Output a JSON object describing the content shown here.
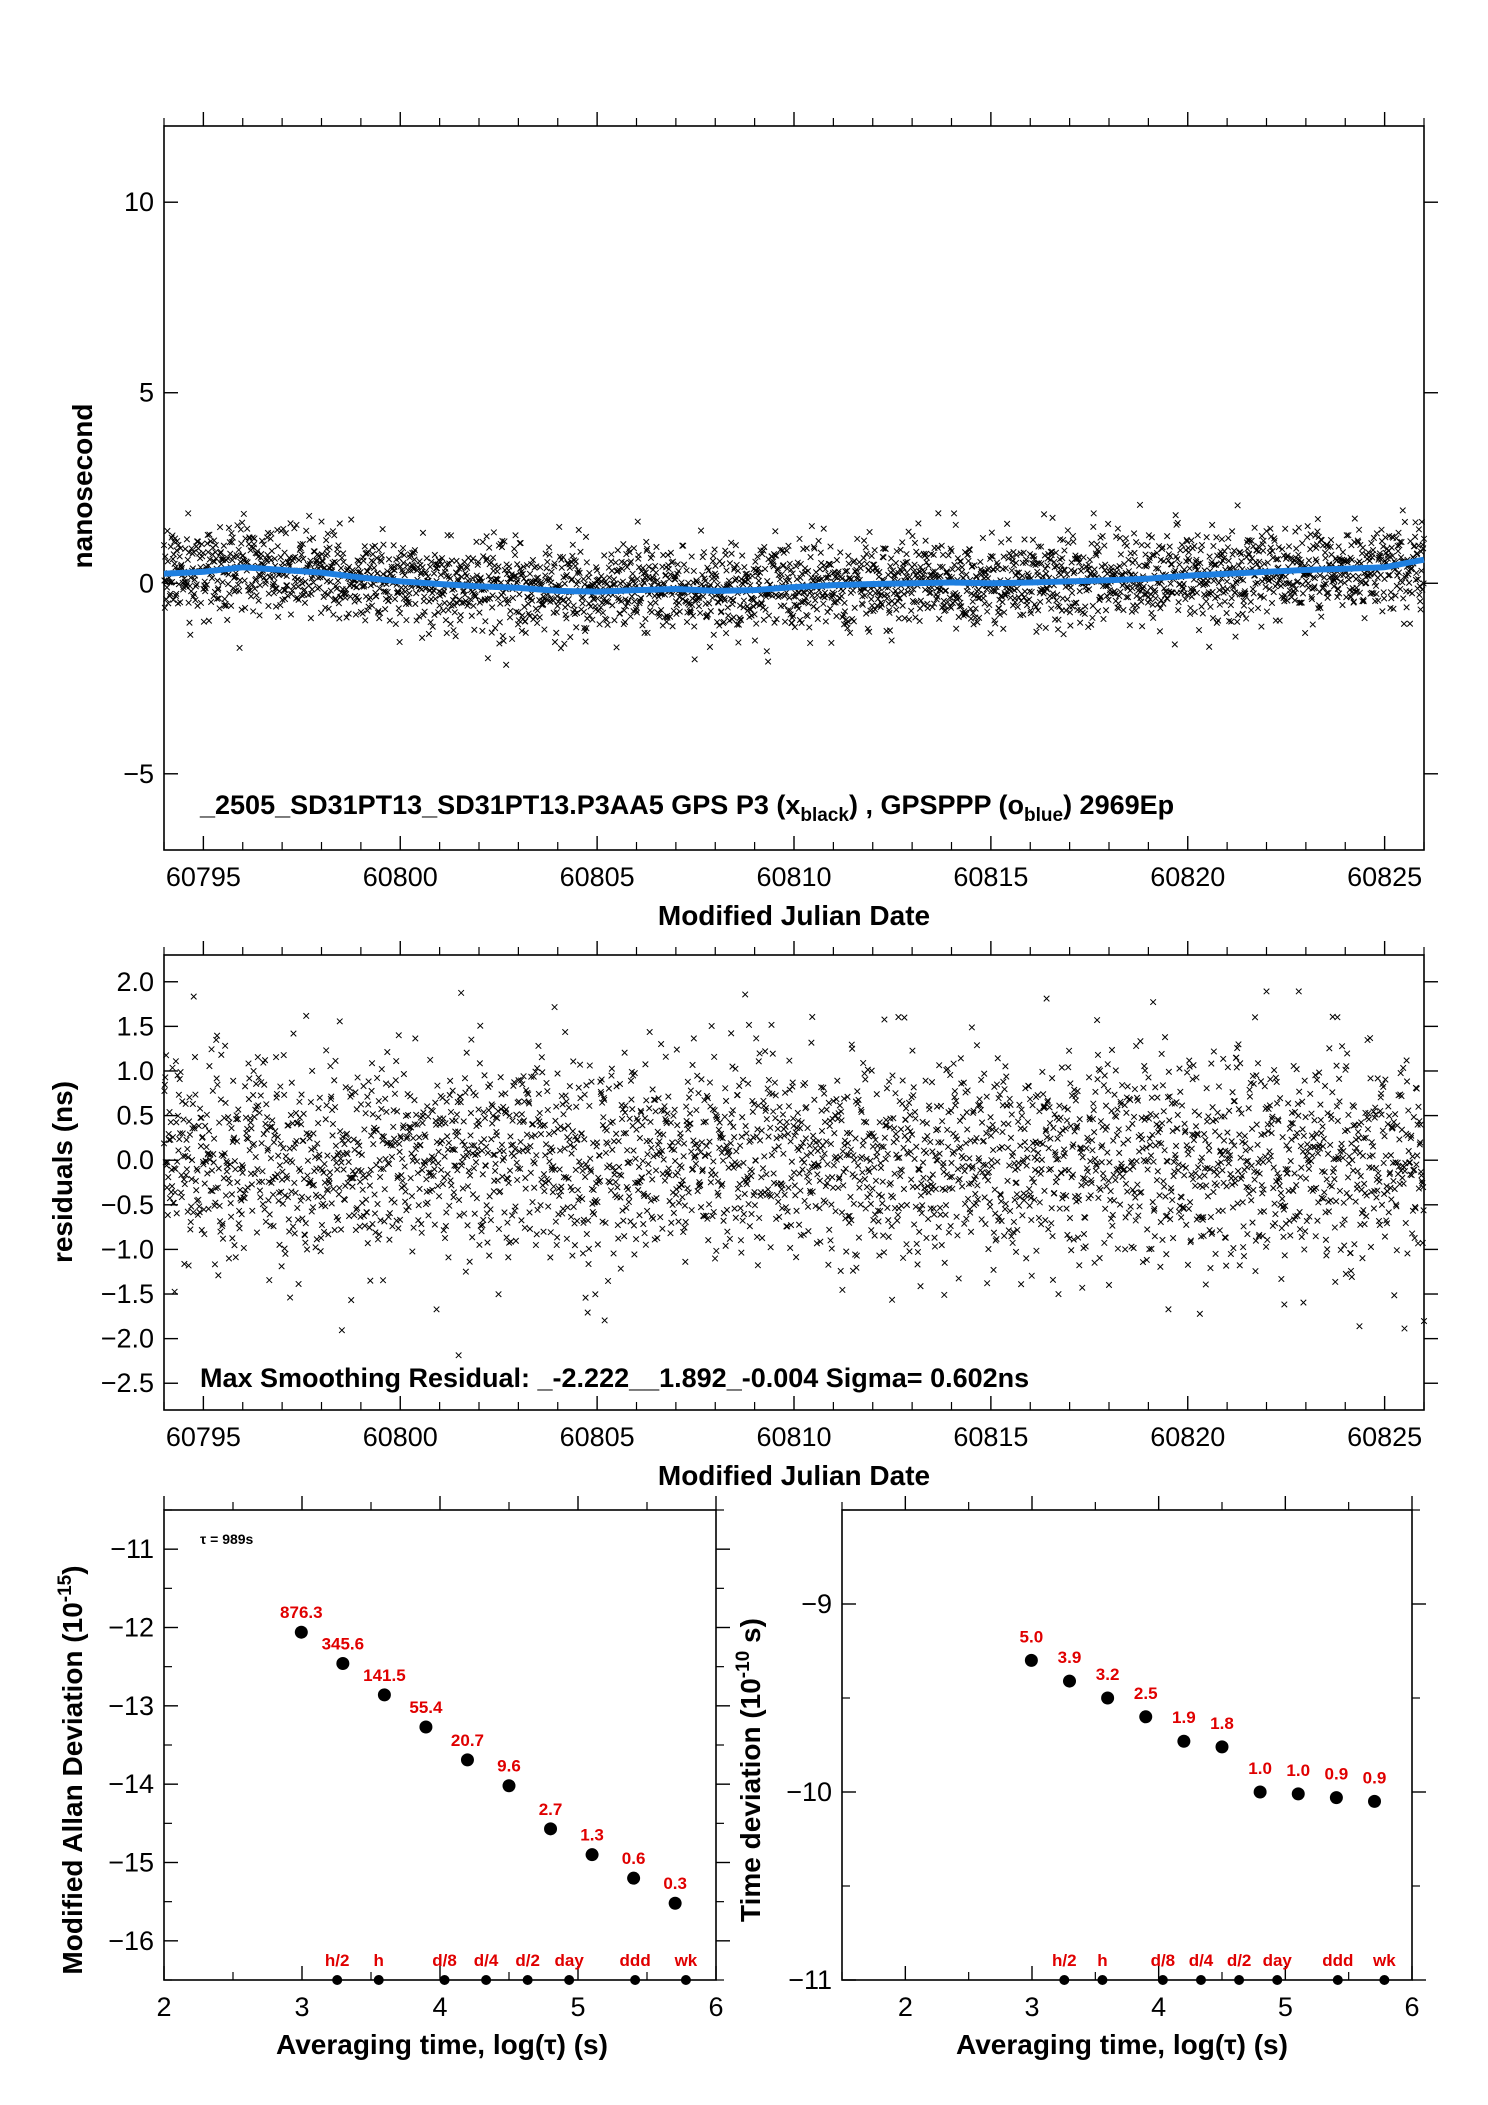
{
  "chart_data": [
    {
      "id": "phase",
      "type": "scatter",
      "title": "_2505_SD31PT13_SD31PT13.P3AA5     GPS P3 (x",
      "title_sub1": "black",
      "title_mid": ") ,  GPSPPP (o",
      "title_sub2": "blue",
      "title_end": ")  2969Ep",
      "xlabel": "Modified Julian Date",
      "ylabel": "nanosecond",
      "xlim": [
        60794.0,
        60826.0
      ],
      "ylim": [
        -7,
        12
      ],
      "xticks": [
        60795,
        60800,
        60805,
        60810,
        60815,
        60820,
        60825
      ],
      "yticks": [
        -5,
        0,
        5,
        10
      ],
      "ytick_labels": [
        "−5",
        "0",
        "5",
        "10"
      ],
      "series": [
        {
          "marker": "x",
          "color": "#000000",
          "scatter_sd": 0.6
        },
        {
          "marker": "o",
          "color": "#1e7fe0",
          "x": [
            60794.0,
            60795.0,
            60796.0,
            60797.0,
            60798.0,
            60799.0,
            60800.0,
            60801.0,
            60802.0,
            60803.0,
            60804.0,
            60805.0,
            60806.0,
            60807.0,
            60808.0,
            60809.0,
            60810.0,
            60811.0,
            60812.0,
            60813.0,
            60814.0,
            60815.0,
            60816.0,
            60817.0,
            60818.0,
            60819.0,
            60820.0,
            60821.0,
            60822.0,
            60823.0,
            60824.0,
            60825.0,
            60826.0
          ],
          "y": [
            0.25,
            0.3,
            0.42,
            0.35,
            0.28,
            0.15,
            0.05,
            -0.02,
            -0.08,
            -0.12,
            -0.2,
            -0.22,
            -0.18,
            -0.15,
            -0.2,
            -0.18,
            -0.1,
            -0.05,
            -0.02,
            0.0,
            0.02,
            0.0,
            0.02,
            0.05,
            0.08,
            0.12,
            0.2,
            0.25,
            0.3,
            0.35,
            0.38,
            0.42,
            0.62
          ]
        }
      ]
    },
    {
      "id": "residuals",
      "type": "scatter",
      "xlabel": "Modified Julian Date",
      "ylabel": "residuals (ns)",
      "annotation": "Max Smoothing Residual: _-2.222__1.892_-0.004  Sigma= 0.602ns",
      "xlim": [
        60794.0,
        60826.0
      ],
      "ylim": [
        -2.8,
        2.3
      ],
      "xticks": [
        60795,
        60800,
        60805,
        60810,
        60815,
        60820,
        60825
      ],
      "yticks": [
        -2.5,
        -2.0,
        -1.5,
        -1.0,
        -0.5,
        0.0,
        0.5,
        1.0,
        1.5,
        2.0
      ],
      "ytick_labels": [
        "−2.5",
        "−2.0",
        "−1.5",
        "−1.0",
        "−0.5",
        "0.0",
        "0.5",
        "1.0",
        "1.5",
        "2.0"
      ],
      "series": [
        {
          "marker": "x",
          "color": "#000000",
          "scatter_sd": 0.6
        }
      ]
    },
    {
      "id": "mdev",
      "type": "scatter",
      "xlabel": "Averaging time, log(τ) (s)",
      "ylabel": "Modified Allan Deviation (10",
      "ylabel_sup": "-15",
      "ylabel_end": ")",
      "note": "τ = 989s",
      "xlim": [
        2,
        6
      ],
      "ylim": [
        -16.5,
        -10.5
      ],
      "xticks": [
        2,
        3,
        4,
        5,
        6
      ],
      "yticks": [
        -16,
        -15,
        -14,
        -13,
        -12,
        -11
      ],
      "ytick_labels": [
        "−16",
        "−15",
        "−14",
        "−13",
        "−12",
        "−11"
      ],
      "points": {
        "x": [
          2.995,
          3.296,
          3.597,
          3.898,
          4.199,
          4.5,
          4.801,
          5.102,
          5.403,
          5.704
        ],
        "y": [
          -12.06,
          -12.46,
          -12.86,
          -13.27,
          -13.69,
          -14.02,
          -14.57,
          -14.9,
          -15.2,
          -15.52
        ],
        "labels": [
          "876.3",
          "345.6",
          "141.5",
          "55.4",
          "20.7",
          "9.6",
          "2.7",
          "1.3",
          "0.6",
          "0.3"
        ]
      },
      "markers": {
        "x": [
          3.255,
          3.556,
          4.033,
          4.334,
          4.635,
          4.936,
          5.414,
          5.782
        ],
        "labels": [
          "h/2",
          "h",
          "d/8",
          "d/4",
          "d/2",
          "day",
          "ddd",
          "wk"
        ]
      }
    },
    {
      "id": "tdev",
      "type": "scatter",
      "xlabel": "Averaging time, log(τ) (s)",
      "ylabel": "Time deviation (10",
      "ylabel_sup": "-10",
      "ylabel_end": " s)",
      "xlim": [
        1.5,
        6.0
      ],
      "ylim": [
        -11.0,
        -8.5
      ],
      "xticks": [
        2,
        3,
        4,
        5,
        6
      ],
      "yticks": [
        -11,
        -10,
        -9
      ],
      "ytick_labels": [
        "−11",
        "−10",
        "−9"
      ],
      "points": {
        "x": [
          2.995,
          3.296,
          3.597,
          3.898,
          4.199,
          4.5,
          4.801,
          5.102,
          5.403,
          5.704
        ],
        "y": [
          -9.3,
          -9.41,
          -9.5,
          -9.6,
          -9.73,
          -9.76,
          -10.0,
          -10.01,
          -10.03,
          -10.05
        ],
        "labels": [
          "5.0",
          "3.9",
          "3.2",
          "2.5",
          "1.9",
          "1.8",
          "1.0",
          "1.0",
          "0.9",
          "0.9"
        ]
      },
      "markers": {
        "x": [
          3.255,
          3.556,
          4.033,
          4.334,
          4.635,
          4.936,
          5.414,
          5.782
        ],
        "labels": [
          "h/2",
          "h",
          "d/8",
          "d/4",
          "d/2",
          "day",
          "ddd",
          "wk"
        ]
      }
    }
  ]
}
